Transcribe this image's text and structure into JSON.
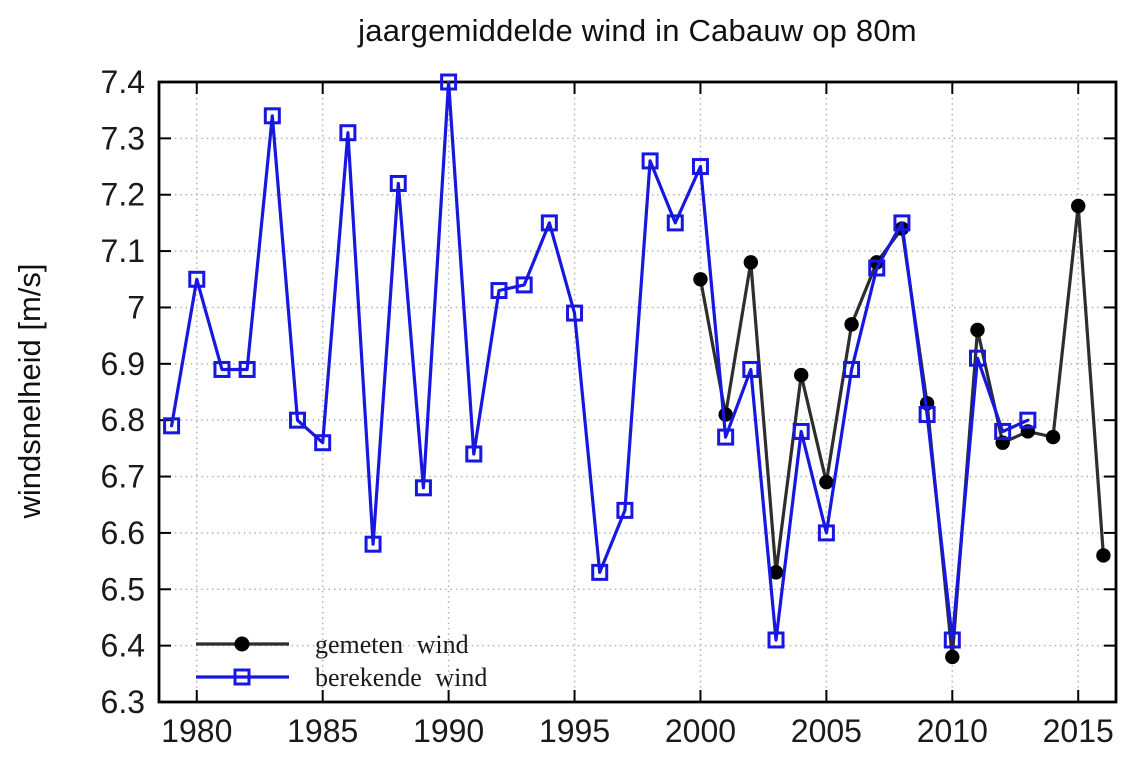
{
  "page": {
    "background": "#ffffff"
  },
  "chart_data": {
    "type": "line",
    "title": "jaargemiddelde wind in Cabauw op 80m",
    "xlabel": "",
    "ylabel": "windsnelheid [m/s]",
    "xlim": [
      1978.5,
      2016.5
    ],
    "ylim": [
      6.3,
      7.4
    ],
    "grid": "dotted",
    "grid_color": "#b3b3b3",
    "frame_color": "#000000",
    "xticks": [
      1980,
      1985,
      1990,
      1995,
      2000,
      2005,
      2010,
      2015
    ],
    "xtick_labels": [
      "1980",
      "1985",
      "1990",
      "1995",
      "2000",
      "2005",
      "2010",
      "2015"
    ],
    "yticks": [
      6.3,
      6.4,
      6.5,
      6.6,
      6.7,
      6.8,
      6.9,
      7.0,
      7.1,
      7.2,
      7.3,
      7.4
    ],
    "ytick_labels": [
      "6.3",
      "6.4",
      "6.5",
      "6.6",
      "6.7",
      "6.8",
      "6.9",
      "7",
      "7.1",
      "7.2",
      "7.3",
      "7.4"
    ],
    "legend": {
      "position": "bottom-left"
    },
    "series": [
      {
        "name": "gemeten wind",
        "color": "#2e2e2e",
        "marker_color": "#000000",
        "marker": "filled-circle",
        "x": [
          2000,
          2001,
          2002,
          2003,
          2004,
          2005,
          2006,
          2007,
          2008,
          2009,
          2010,
          2011,
          2012,
          2013,
          2014,
          2015,
          2016
        ],
        "y": [
          7.05,
          6.81,
          7.08,
          6.53,
          6.88,
          6.69,
          6.97,
          7.08,
          7.14,
          6.83,
          6.38,
          6.96,
          6.76,
          6.78,
          6.77,
          7.18,
          6.56
        ]
      },
      {
        "name": "berekende wind",
        "color": "#1717e0",
        "marker_color": "#1717e0",
        "marker": "open-square",
        "x": [
          1979,
          1980,
          1981,
          1982,
          1983,
          1984,
          1985,
          1986,
          1987,
          1988,
          1989,
          1990,
          1991,
          1992,
          1993,
          1994,
          1995,
          1996,
          1997,
          1998,
          1999,
          2000,
          2001,
          2002,
          2003,
          2004,
          2005,
          2006,
          2007,
          2008,
          2009,
          2010,
          2011,
          2012,
          2013
        ],
        "y": [
          6.79,
          7.05,
          6.89,
          6.89,
          7.34,
          6.8,
          6.76,
          7.31,
          6.58,
          7.22,
          6.68,
          7.4,
          6.74,
          7.03,
          7.04,
          7.15,
          6.99,
          6.53,
          6.64,
          7.26,
          7.15,
          7.25,
          6.77,
          6.89,
          6.41,
          6.78,
          6.6,
          6.89,
          7.07,
          7.15,
          6.81,
          6.41,
          6.91,
          6.78,
          6.8
        ]
      }
    ]
  }
}
